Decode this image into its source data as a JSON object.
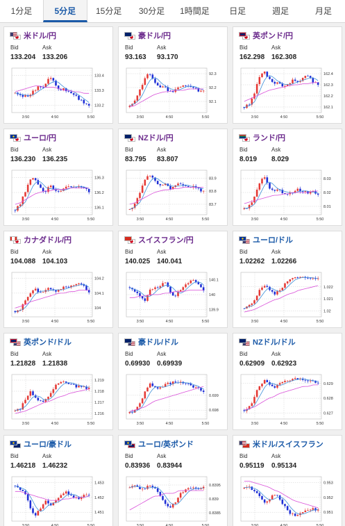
{
  "tabs": [
    "1分足",
    "5分足",
    "15分足",
    "30分足",
    "1時間足",
    "日足",
    "週足",
    "月足"
  ],
  "active_tab": 1,
  "labels": {
    "bid": "Bid",
    "ask": "Ask"
  },
  "colors": {
    "accent": "#1b5aa8",
    "yen_pair": "#6b2a8c",
    "up_candle": "#e53935",
    "down_candle": "#1e2ed6",
    "ma_short": "#3d8fd8",
    "ma_long": "#d94fd9",
    "grid": "#cfcfcf"
  },
  "cards": [
    {
      "name": "米ドル/円",
      "yen": true,
      "flags": [
        "us",
        "jp"
      ],
      "bid": "133.204",
      "ask": "133.206",
      "ticks": [
        "133.4",
        "133.3",
        "133.2"
      ],
      "xlabels": [
        "3:50",
        "4:50",
        "5:50"
      ],
      "chart_data": {
        "type": "candlestick",
        "x_ticks": [
          "3:50",
          "4:50",
          "5:50"
        ],
        "y_ticks": [
          "133.4",
          "133.3",
          "133.2"
        ],
        "ylim": [
          133.15,
          133.45
        ],
        "trend": [
          133.28,
          133.27,
          133.26,
          133.27,
          133.3,
          133.33,
          133.32,
          133.4,
          133.35,
          133.3,
          133.31,
          133.29,
          133.27,
          133.24,
          133.22,
          133.2
        ],
        "ma_long": [
          133.29,
          133.3,
          133.31,
          133.32,
          133.33,
          133.33,
          133.32,
          133.32,
          133.32,
          133.31,
          133.3,
          133.3,
          133.29,
          133.29,
          133.28,
          133.28
        ]
      }
    },
    {
      "name": "豪ドル/円",
      "yen": true,
      "flags": [
        "au",
        "jp"
      ],
      "bid": "93.163",
      "ask": "93.170",
      "ticks": [
        "92.3",
        "92.2",
        "92.1"
      ],
      "xlabels": [
        "3:50",
        "4:50",
        "5:50"
      ],
      "chart_data": {
        "type": "candlestick",
        "x_ticks": [
          "3:50",
          "4:50",
          "5:50"
        ],
        "y_ticks": [
          "92.3",
          "92.2",
          "92.1"
        ],
        "ylim": [
          92.02,
          92.34
        ],
        "trend": [
          92.06,
          92.1,
          92.17,
          92.27,
          92.3,
          92.24,
          92.2,
          92.22,
          92.16,
          92.18,
          92.21,
          92.22,
          92.21,
          92.2,
          92.18,
          92.17
        ],
        "ma_long": [
          92.06,
          92.07,
          92.09,
          92.11,
          92.13,
          92.15,
          92.16,
          92.17,
          92.17,
          92.18,
          92.18,
          92.18,
          92.19,
          92.19,
          92.19,
          92.19
        ]
      }
    },
    {
      "name": "英ポンド/円",
      "yen": true,
      "flags": [
        "gb",
        "jp"
      ],
      "bid": "162.298",
      "ask": "162.308",
      "ticks": [
        "162.4",
        "162.3",
        "162.2",
        "162.1"
      ],
      "xlabels": [
        "3:50",
        "4:50",
        "5:50"
      ],
      "chart_data": {
        "type": "candlestick",
        "x_ticks": [
          "3:50",
          "4:50",
          "5:50"
        ],
        "y_ticks": [
          "162.4",
          "162.3",
          "162.2",
          "162.1"
        ],
        "ylim": [
          162.05,
          162.45
        ],
        "trend": [
          162.1,
          162.13,
          162.22,
          162.35,
          162.42,
          162.35,
          162.3,
          162.32,
          162.28,
          162.3,
          162.35,
          162.33,
          162.36,
          162.38,
          162.33,
          162.3
        ],
        "ma_long": [
          162.15,
          162.17,
          162.19,
          162.21,
          162.23,
          162.25,
          162.26,
          162.27,
          162.28,
          162.29,
          162.3,
          162.3,
          162.31,
          162.31,
          162.32,
          162.32
        ]
      }
    },
    {
      "name": "ユーロ/円",
      "yen": true,
      "flags": [
        "eu",
        "jp"
      ],
      "bid": "136.230",
      "ask": "136.235",
      "ticks": [
        "136.3",
        "136.2",
        "136.1"
      ],
      "xlabels": [
        "3:50",
        "4:50",
        "5:50"
      ],
      "chart_data": {
        "type": "candlestick",
        "x_ticks": [
          "3:50",
          "4:50",
          "5:50"
        ],
        "y_ticks": [
          "136.3",
          "136.2",
          "136.1"
        ],
        "ylim": [
          136.05,
          136.35
        ],
        "trend": [
          136.08,
          136.12,
          136.2,
          136.28,
          136.3,
          136.24,
          136.2,
          136.25,
          136.22,
          136.2,
          136.24,
          136.25,
          136.23,
          136.24,
          136.22,
          136.21
        ],
        "ma_long": [
          136.12,
          136.13,
          136.15,
          136.17,
          136.19,
          136.2,
          136.21,
          136.21,
          136.22,
          136.22,
          136.22,
          136.23,
          136.23,
          136.23,
          136.23,
          136.23
        ]
      }
    },
    {
      "name": "NZドル/円",
      "yen": true,
      "flags": [
        "nz",
        "jp"
      ],
      "bid": "83.795",
      "ask": "83.807",
      "ticks": [
        "83.9",
        "83.8",
        "83.7"
      ],
      "xlabels": [
        "3:50",
        "4:50",
        "5:50"
      ],
      "chart_data": {
        "type": "candlestick",
        "x_ticks": [
          "3:50",
          "4:50",
          "5:50"
        ],
        "y_ticks": [
          "83.9",
          "83.8",
          "83.7"
        ],
        "ylim": [
          83.62,
          83.96
        ],
        "trend": [
          83.66,
          83.7,
          83.78,
          83.88,
          83.93,
          83.88,
          83.84,
          83.86,
          83.82,
          83.84,
          83.86,
          83.85,
          83.84,
          83.83,
          83.81,
          83.8
        ],
        "ma_long": [
          83.7,
          83.71,
          83.73,
          83.75,
          83.77,
          83.79,
          83.8,
          83.81,
          83.81,
          83.82,
          83.82,
          83.83,
          83.83,
          83.83,
          83.83,
          83.83
        ]
      }
    },
    {
      "name": "ランド/円",
      "yen": true,
      "flags": [
        "za",
        "jp"
      ],
      "bid": "8.019",
      "ask": "8.029",
      "ticks": [
        "8.03",
        "8.02",
        "8.01"
      ],
      "xlabels": [
        "3:50",
        "4:50",
        "5:50"
      ],
      "chart_data": {
        "type": "candlestick",
        "x_ticks": [
          "3:50",
          "4:50",
          "5:50"
        ],
        "y_ticks": [
          "8.03",
          "8.02",
          "8.01"
        ],
        "ylim": [
          8.004,
          8.036
        ],
        "trend": [
          8.008,
          8.01,
          8.016,
          8.026,
          8.032,
          8.024,
          8.02,
          8.022,
          8.018,
          8.02,
          8.021,
          8.022,
          8.021,
          8.02,
          8.02,
          8.019
        ],
        "ma_long": [
          8.012,
          8.013,
          8.014,
          8.015,
          8.016,
          8.017,
          8.018,
          8.018,
          8.019,
          8.019,
          8.02,
          8.02,
          8.02,
          8.02,
          8.021,
          8.021
        ]
      }
    },
    {
      "name": "カナダドル/円",
      "yen": true,
      "flags": [
        "ca",
        "jp"
      ],
      "bid": "104.088",
      "ask": "104.103",
      "ticks": [
        "104.2",
        "104.1",
        "104"
      ],
      "xlabels": [
        "3:50",
        "4:50",
        "5:50"
      ],
      "chart_data": {
        "type": "candlestick",
        "x_ticks": [
          "3:50",
          "4:50",
          "5:50"
        ],
        "y_ticks": [
          "104.2",
          "104.1",
          "104"
        ],
        "ylim": [
          103.94,
          104.24
        ],
        "trend": [
          103.98,
          103.99,
          104.04,
          104.1,
          104.13,
          104.1,
          104.12,
          104.14,
          104.11,
          104.12,
          104.15,
          104.13,
          104.16,
          104.17,
          104.14,
          104.1
        ],
        "ma_long": [
          104.0,
          104.01,
          104.02,
          104.04,
          104.05,
          104.06,
          104.07,
          104.08,
          104.09,
          104.1,
          104.1,
          104.11,
          104.11,
          104.12,
          104.12,
          104.12
        ]
      }
    },
    {
      "name": "スイスフラン/円",
      "yen": true,
      "flags": [
        "ch",
        "jp"
      ],
      "bid": "140.025",
      "ask": "140.041",
      "ticks": [
        "140.1",
        "140",
        "139.9"
      ],
      "xlabels": [
        "3:50",
        "4:50",
        "5:50"
      ],
      "chart_data": {
        "type": "candlestick",
        "x_ticks": [
          "3:50",
          "4:50",
          "5:50"
        ],
        "y_ticks": [
          "140.1",
          "140",
          "139.9"
        ],
        "ylim": [
          139.85,
          140.15
        ],
        "trend": [
          140.05,
          140.02,
          140.0,
          139.96,
          140.02,
          140.06,
          140.04,
          140.1,
          140.04,
          139.98,
          140.02,
          140.05,
          140.08,
          140.1,
          140.06,
          140.03
        ],
        "ma_long": [
          139.98,
          139.98,
          139.99,
          139.99,
          140.0,
          140.0,
          140.0,
          140.01,
          140.01,
          140.02,
          140.02,
          140.02,
          140.03,
          140.03,
          140.03,
          140.03
        ]
      }
    },
    {
      "name": "ユーロ/ドル",
      "yen": false,
      "flags": [
        "eu",
        "us"
      ],
      "bid": "1.02262",
      "ask": "1.02266",
      "ticks": [
        "1.022",
        "1.021",
        "1.02"
      ],
      "xlabels": [
        "3:50",
        "4:50",
        "5:50"
      ],
      "chart_data": {
        "type": "candlestick",
        "x_ticks": [
          "3:50",
          "4:50",
          "5:50"
        ],
        "y_ticks": [
          "1.022",
          "1.021",
          "1.02"
        ],
        "ylim": [
          1.0195,
          1.0232
        ],
        "trend": [
          1.0202,
          1.0204,
          1.0209,
          1.0216,
          1.0222,
          1.0218,
          1.0214,
          1.0216,
          1.0221,
          1.0226,
          1.0228,
          1.0227,
          1.0228,
          1.0227,
          1.0226,
          1.0226
        ],
        "ma_long": [
          1.0199,
          1.02,
          1.0201,
          1.0203,
          1.0205,
          1.0207,
          1.0209,
          1.021,
          1.0212,
          1.0214,
          1.0215,
          1.0217,
          1.0218,
          1.0219,
          1.022,
          1.0221
        ]
      }
    },
    {
      "name": "英ポンド/ドル",
      "yen": false,
      "flags": [
        "gb",
        "us"
      ],
      "bid": "1.21828",
      "ask": "1.21838",
      "ticks": [
        "1.219",
        "1.218",
        "1.217",
        "1.216"
      ],
      "xlabels": [
        "3:50",
        "4:50",
        "5:50"
      ],
      "chart_data": {
        "type": "candlestick",
        "x_ticks": [
          "3:50",
          "4:50",
          "5:50"
        ],
        "y_ticks": [
          "1.219",
          "1.218",
          "1.217",
          "1.216"
        ],
        "ylim": [
          1.2155,
          1.2195
        ],
        "trend": [
          1.2162,
          1.2164,
          1.2172,
          1.218,
          1.2175,
          1.217,
          1.2172,
          1.2176,
          1.2185,
          1.2189,
          1.2188,
          1.2186,
          1.2185,
          1.2184,
          1.2183,
          1.2183
        ],
        "ma_long": [
          1.216,
          1.2161,
          1.2162,
          1.2164,
          1.2166,
          1.2168,
          1.217,
          1.2171,
          1.2173,
          1.2175,
          1.2176,
          1.2178,
          1.2179,
          1.218,
          1.2181,
          1.2182
        ]
      }
    },
    {
      "name": "豪ドル/ドル",
      "yen": false,
      "flags": [
        "au",
        "us"
      ],
      "bid": "0.69930",
      "ask": "0.69939",
      "ticks": [
        "0.699",
        "0.698"
      ],
      "xlabels": [
        "3:50",
        "4:50",
        "5:50"
      ],
      "chart_data": {
        "type": "candlestick",
        "x_ticks": [
          "3:50",
          "4:50",
          "5:50"
        ],
        "y_ticks": [
          "0.699",
          "0.698"
        ],
        "ylim": [
          0.6974,
          0.7004
        ],
        "trend": [
          0.6978,
          0.698,
          0.6984,
          0.6992,
          0.6998,
          0.6996,
          0.6994,
          0.6997,
          0.6998,
          0.6999,
          0.6999,
          0.6998,
          0.6997,
          0.6996,
          0.6994,
          0.6993
        ],
        "ma_long": [
          0.6979,
          0.698,
          0.6981,
          0.6982,
          0.6984,
          0.6986,
          0.6987,
          0.6988,
          0.6989,
          0.699,
          0.6991,
          0.6992,
          0.6993,
          0.6994,
          0.6995,
          0.6996
        ]
      }
    },
    {
      "name": "NZドル/ドル",
      "yen": false,
      "flags": [
        "nz",
        "us"
      ],
      "bid": "0.62909",
      "ask": "0.62923",
      "ticks": [
        "0.629",
        "0.628",
        "0.627"
      ],
      "xlabels": [
        "3:50",
        "4:50",
        "5:50"
      ],
      "chart_data": {
        "type": "candlestick",
        "x_ticks": [
          "3:50",
          "4:50",
          "5:50"
        ],
        "y_ticks": [
          "0.629",
          "0.628",
          "0.627"
        ],
        "ylim": [
          0.6266,
          0.6296
        ],
        "trend": [
          0.6272,
          0.6274,
          0.628,
          0.6288,
          0.6292,
          0.6289,
          0.6287,
          0.6289,
          0.6291,
          0.6292,
          0.6293,
          0.6293,
          0.6293,
          0.6292,
          0.6291,
          0.629
        ],
        "ma_long": [
          0.6272,
          0.6273,
          0.6274,
          0.6276,
          0.6278,
          0.628,
          0.6281,
          0.6283,
          0.6284,
          0.6285,
          0.6286,
          0.6287,
          0.6288,
          0.6288,
          0.6289,
          0.6289
        ]
      }
    },
    {
      "name": "ユーロ/豪ドル",
      "yen": false,
      "flags": [
        "eu",
        "au"
      ],
      "bid": "1.46218",
      "ask": "1.46232",
      "ticks": [
        "1.453",
        "1.452",
        "1.451"
      ],
      "xlabels": [
        "3:50",
        "4:50",
        "5:50"
      ],
      "chart_data": {
        "type": "candlestick",
        "x_ticks": [
          "3:50",
          "4:50",
          "5:50"
        ],
        "y_ticks": [
          "1.453",
          "1.452",
          "1.451"
        ],
        "ylim": [
          1.4504,
          1.4534
        ],
        "trend": [
          1.4528,
          1.4526,
          1.4522,
          1.4514,
          1.4508,
          1.4512,
          1.4518,
          1.4515,
          1.4517,
          1.4521,
          1.4524,
          1.4522,
          1.452,
          1.4519,
          1.4521,
          1.4522
        ],
        "ma_long": [
          1.4524,
          1.4524,
          1.4523,
          1.4522,
          1.4521,
          1.452,
          1.4519,
          1.4518,
          1.4518,
          1.4518,
          1.4519,
          1.4519,
          1.452,
          1.452,
          1.452,
          1.4521
        ]
      }
    },
    {
      "name": "ユーロ/英ポンド",
      "yen": false,
      "flags": [
        "eu",
        "gb"
      ],
      "bid": "0.83936",
      "ask": "0.83944",
      "ticks": [
        "0.8395",
        "0.839",
        "0.8385"
      ],
      "xlabels": [
        "3:50",
        "4:50",
        "5:50"
      ],
      "chart_data": {
        "type": "candlestick",
        "x_ticks": [
          "3:50",
          "4:50",
          "5:50"
        ],
        "y_ticks": [
          "0.8395",
          "0.839",
          "0.8385"
        ],
        "ylim": [
          0.8382,
          0.8398
        ],
        "trend": [
          0.8394,
          0.8395,
          0.8394,
          0.8393,
          0.8395,
          0.8394,
          0.8392,
          0.8389,
          0.8387,
          0.8388,
          0.8391,
          0.8393,
          0.8394,
          0.8394,
          0.8393,
          0.8394
        ],
        "ma_long": [
          0.8386,
          0.8387,
          0.8388,
          0.8389,
          0.839,
          0.8391,
          0.8391,
          0.8392,
          0.8392,
          0.8392,
          0.8393,
          0.8393,
          0.8393,
          0.8393,
          0.8393,
          0.8393
        ]
      }
    },
    {
      "name": "米ドル/スイスフラン",
      "yen": false,
      "flags": [
        "us",
        "ch"
      ],
      "bid": "0.95119",
      "ask": "0.95134",
      "ticks": [
        "0.953",
        "0.952",
        "0.951"
      ],
      "xlabels": [
        "3:50",
        "4:50",
        "5:50"
      ],
      "chart_data": {
        "type": "candlestick",
        "x_ticks": [
          "3:50",
          "4:50",
          "5:50"
        ],
        "y_ticks": [
          "0.953",
          "0.952",
          "0.951"
        ],
        "ylim": [
          0.9504,
          0.9534
        ],
        "trend": [
          0.9526,
          0.9527,
          0.9525,
          0.9521,
          0.9516,
          0.9519,
          0.9522,
          0.952,
          0.9515,
          0.951,
          0.9508,
          0.9509,
          0.951,
          0.9511,
          0.9512,
          0.9512
        ],
        "ma_long": [
          0.9531,
          0.9531,
          0.953,
          0.9529,
          0.9528,
          0.9527,
          0.9525,
          0.9524,
          0.9522,
          0.952,
          0.9518,
          0.9517,
          0.9516,
          0.9515,
          0.9514,
          0.9513
        ]
      }
    }
  ]
}
